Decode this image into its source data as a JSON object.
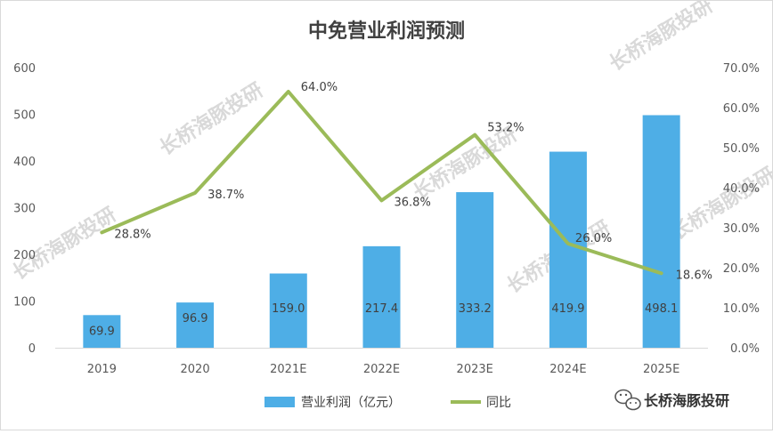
{
  "watermark": "长桥海豚投研",
  "brand": {
    "name": "长桥海豚投研",
    "icon": "wechat-icon"
  },
  "colors": {
    "bar": "#4eaee6",
    "line": "#9bbb59",
    "text": "#404040",
    "axis": "#d9d9d9"
  },
  "chart_data": {
    "type": "bar",
    "title": "中免营业利润预测",
    "categories": [
      "2019",
      "2020",
      "2021E",
      "2022E",
      "2023E",
      "2024E",
      "2025E"
    ],
    "series": [
      {
        "name": "营业利润（亿元）",
        "type": "bar",
        "axis": "left",
        "values": [
          69.9,
          96.9,
          159.0,
          217.4,
          333.2,
          419.9,
          498.1
        ],
        "labels": [
          "69.9",
          "96.9",
          "159.0",
          "217.4",
          "333.2",
          "419.9",
          "498.1"
        ]
      },
      {
        "name": "同比",
        "type": "line",
        "axis": "right",
        "values": [
          28.8,
          38.7,
          64.0,
          36.8,
          53.2,
          26.0,
          18.6
        ],
        "labels": [
          "28.8%",
          "38.7%",
          "64.0%",
          "36.8%",
          "53.2%",
          "26.0%",
          "18.6%"
        ]
      }
    ],
    "y_left": {
      "min": 0,
      "max": 600,
      "ticks": [
        "0",
        "100",
        "200",
        "300",
        "400",
        "500",
        "600"
      ]
    },
    "y_right": {
      "min": 0,
      "max": 70,
      "ticks": [
        "0.0%",
        "10.0%",
        "20.0%",
        "30.0%",
        "40.0%",
        "50.0%",
        "60.0%",
        "70.0%"
      ]
    },
    "grid": false,
    "legend": "bottom"
  }
}
